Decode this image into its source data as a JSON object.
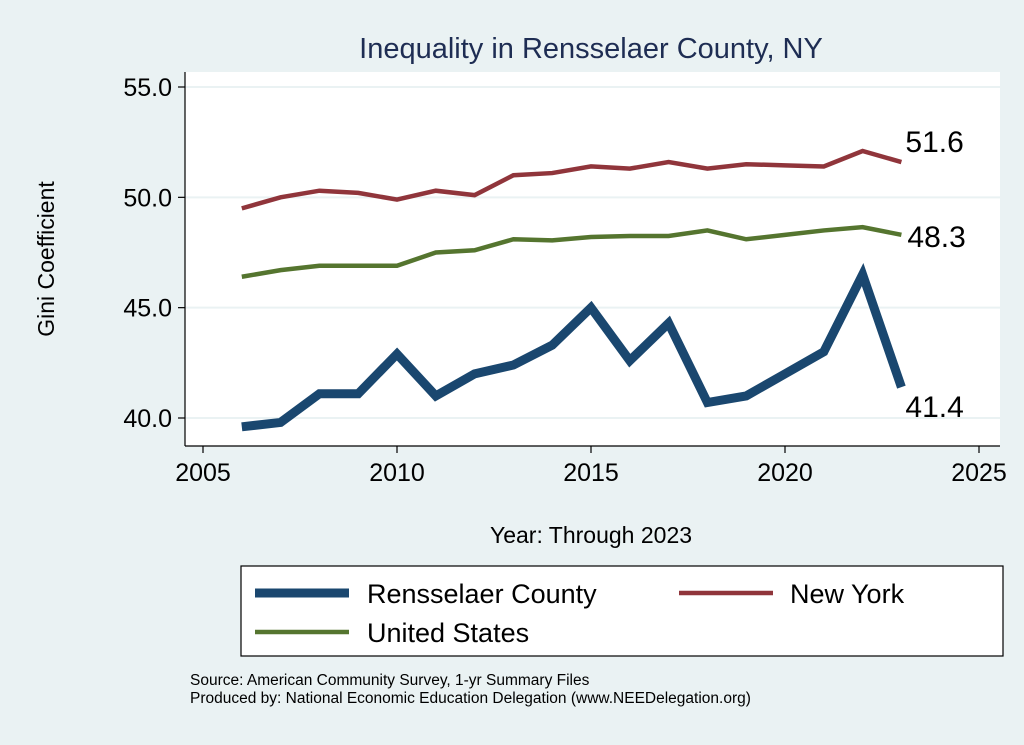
{
  "chart_data": {
    "type": "line",
    "title": "Inequality in Rensselaer County, NY",
    "xlabel": "Year: Through 2023",
    "ylabel": "Gini Coefficient",
    "xlim": [
      2005,
      2025
    ],
    "ylim": [
      40,
      55
    ],
    "xticks": [
      2005,
      2010,
      2015,
      2020,
      2025
    ],
    "yticks": [
      "40.0",
      "45.0",
      "50.0",
      "55.0"
    ],
    "ytick_values": [
      40,
      45,
      50,
      55
    ],
    "grid": true,
    "legend_placement": "bottom",
    "x": [
      2006,
      2007,
      2008,
      2009,
      2010,
      2011,
      2012,
      2013,
      2014,
      2015,
      2016,
      2017,
      2018,
      2019,
      2020,
      2021,
      2022,
      2023
    ],
    "series": [
      {
        "name": "Rensselaer County",
        "color": "#1a476f",
        "width": 9,
        "values": [
          39.6,
          39.8,
          41.1,
          41.1,
          42.9,
          41.0,
          42.0,
          42.4,
          43.3,
          45.0,
          42.6,
          44.3,
          40.7,
          41.0,
          42.0,
          43.0,
          46.5,
          41.4
        ],
        "end_label": "41.4"
      },
      {
        "name": "New York",
        "color": "#90353b",
        "width": 4.5,
        "values": [
          49.5,
          50.0,
          50.3,
          50.2,
          49.9,
          50.3,
          50.1,
          51.0,
          51.1,
          51.4,
          51.3,
          51.6,
          51.3,
          51.5,
          51.45,
          51.4,
          52.1,
          51.6
        ],
        "end_label": "51.6"
      },
      {
        "name": "United States",
        "color": "#55752f",
        "width": 4.5,
        "values": [
          46.4,
          46.7,
          46.9,
          46.9,
          46.9,
          47.5,
          47.6,
          48.1,
          48.05,
          48.2,
          48.25,
          48.25,
          48.5,
          48.1,
          48.3,
          48.5,
          48.65,
          48.3
        ],
        "end_label": "48.3"
      }
    ]
  },
  "footnotes": [
    "Source: American Community Survey, 1-yr Summary Files",
    "Produced by: National Economic Education Delegation (www.NEEDelegation.org)"
  ]
}
